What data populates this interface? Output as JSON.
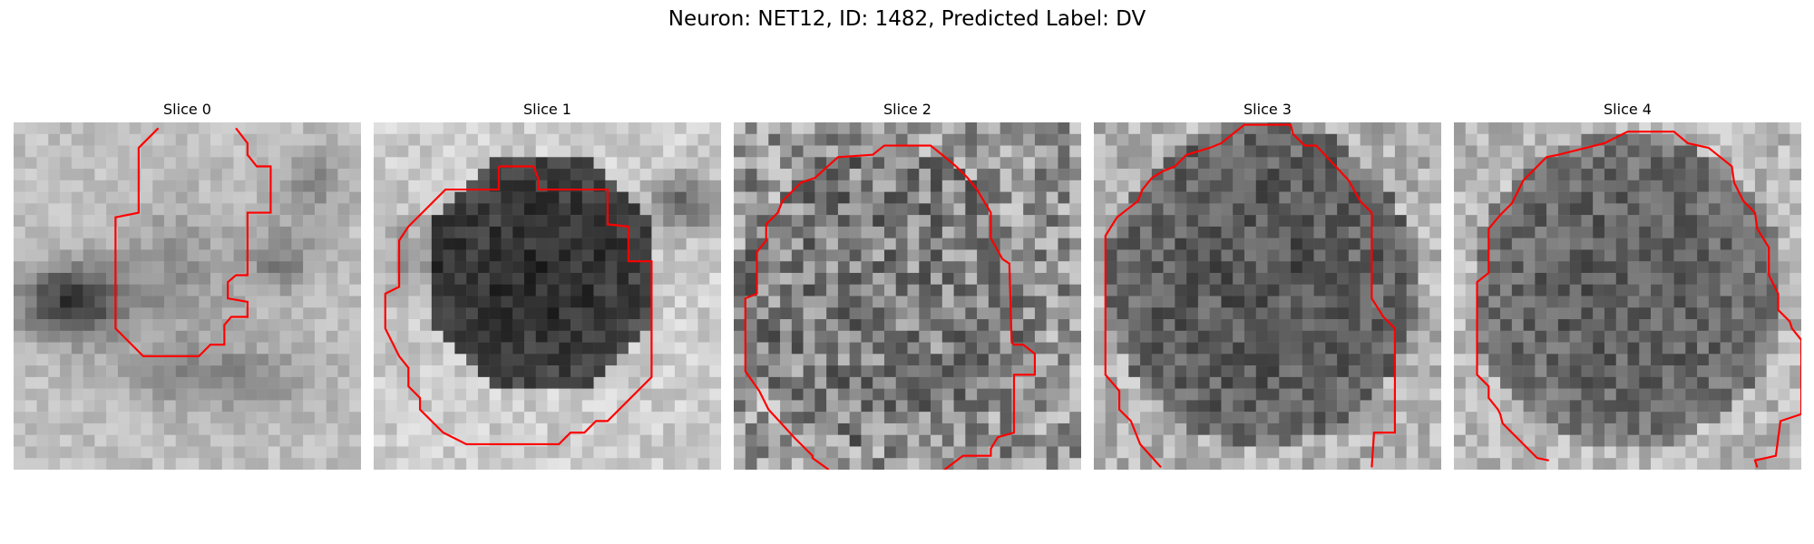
{
  "figure": {
    "title": "Neuron: NET12, ID: 1482, Predicted Label: DV",
    "contour_color": "#ff0000"
  },
  "slices": [
    {
      "title": "Slice 0"
    },
    {
      "title": "Slice 1"
    },
    {
      "title": "Slice 2"
    },
    {
      "title": "Slice 3"
    },
    {
      "title": "Slice 4"
    }
  ]
}
